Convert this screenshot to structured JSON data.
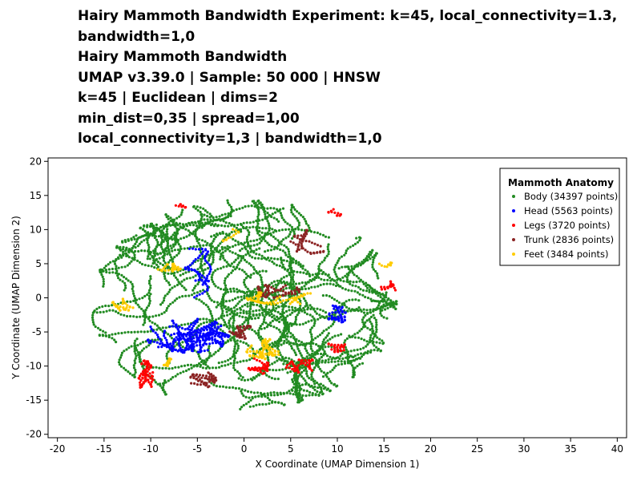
{
  "title_lines": [
    "Hairy Mammoth Bandwidth Experiment: k=45, local_connectivity=1.3,",
    "bandwidth=1,0",
    "Hairy Mammoth Bandwidth",
    "UMAP v3.39.0 | Sample: 50 000 | HNSW",
    "k=45 | Euclidean | dims=2",
    "min_dist=0,35 | spread=1,00",
    "local_connectivity=1,3 | bandwidth=1,0"
  ],
  "chart_data": {
    "type": "scatter",
    "xlabel": "X Coordinate (UMAP Dimension 1)",
    "ylabel": "Y Coordinate (UMAP Dimension 2)",
    "xlim": [
      -21,
      41
    ],
    "ylim": [
      -20.5,
      20.5
    ],
    "xticks": [
      -20,
      -15,
      -10,
      -5,
      0,
      5,
      10,
      15,
      20,
      25,
      30,
      35,
      40
    ],
    "yticks": [
      -20,
      -15,
      -10,
      -5,
      0,
      5,
      10,
      15,
      20
    ],
    "grid": false,
    "legend": {
      "title": "Mammoth Anatomy",
      "placement": "top-right",
      "entries": [
        "Body (34397 points)",
        "Head (5563 points)",
        "Legs (3720 points)",
        "Trunk (2836 points)",
        "Feet (3484 points)"
      ]
    },
    "series": [
      {
        "name": "Body",
        "color": "#228b22",
        "count": 34397
      },
      {
        "name": "Head",
        "color": "#0000ff",
        "count": 5563
      },
      {
        "name": "Legs",
        "color": "#ff0000",
        "count": 3720
      },
      {
        "name": "Trunk",
        "color": "#8b2323",
        "count": 2836
      },
      {
        "name": "Feet",
        "color": "#ffcc00",
        "count": 3484
      }
    ],
    "clusters": {
      "Body": [
        {
          "center": [
            0,
            -1
          ],
          "radius": [
            16,
            15
          ],
          "weight": 1.0
        }
      ],
      "Head": [
        {
          "center": [
            -6,
            -5.5
          ],
          "radius": [
            4.5,
            2.5
          ],
          "weight": 0.7
        },
        {
          "center": [
            -5,
            4
          ],
          "radius": [
            1.5,
            4
          ],
          "weight": 0.2
        },
        {
          "center": [
            10,
            -2.5
          ],
          "radius": [
            1,
            1.5
          ],
          "weight": 0.1
        }
      ],
      "Legs": [
        {
          "center": [
            -10.5,
            -11.5
          ],
          "radius": [
            0.8,
            2.5
          ],
          "weight": 0.25
        },
        {
          "center": [
            6.5,
            -10
          ],
          "radius": [
            2,
            1
          ],
          "weight": 0.25
        },
        {
          "center": [
            1.5,
            -10
          ],
          "radius": [
            1.2,
            1.2
          ],
          "weight": 0.15
        },
        {
          "center": [
            10,
            -7
          ],
          "radius": [
            1,
            1
          ],
          "weight": 0.1
        },
        {
          "center": [
            15.5,
            1.5
          ],
          "radius": [
            0.8,
            1
          ],
          "weight": 0.1
        },
        {
          "center": [
            10,
            12.5
          ],
          "radius": [
            1.2,
            0.5
          ],
          "weight": 0.1
        },
        {
          "center": [
            -6.5,
            13.5
          ],
          "radius": [
            0.8,
            0.3
          ],
          "weight": 0.05
        }
      ],
      "Trunk": [
        {
          "center": [
            7,
            8
          ],
          "radius": [
            2,
            2
          ],
          "weight": 0.35
        },
        {
          "center": [
            3,
            1
          ],
          "radius": [
            3,
            1
          ],
          "weight": 0.3
        },
        {
          "center": [
            -4.5,
            -12
          ],
          "radius": [
            1.5,
            1.2
          ],
          "weight": 0.2
        },
        {
          "center": [
            0,
            -5
          ],
          "radius": [
            1.5,
            1
          ],
          "weight": 0.15
        }
      ],
      "Feet": [
        {
          "center": [
            4,
            0
          ],
          "radius": [
            4,
            1
          ],
          "weight": 0.4
        },
        {
          "center": [
            2,
            -7.5
          ],
          "radius": [
            2,
            1.5
          ],
          "weight": 0.25
        },
        {
          "center": [
            -8,
            4.5
          ],
          "radius": [
            1.5,
            0.7
          ],
          "weight": 0.1
        },
        {
          "center": [
            -13,
            -1
          ],
          "radius": [
            1.2,
            1
          ],
          "weight": 0.1
        },
        {
          "center": [
            -1.5,
            9
          ],
          "radius": [
            1,
            1.5
          ],
          "weight": 0.05
        },
        {
          "center": [
            14.5,
            5
          ],
          "radius": [
            2,
            0.5
          ],
          "weight": 0.05
        },
        {
          "center": [
            -8,
            -9.5
          ],
          "radius": [
            0.7,
            0.7
          ],
          "weight": 0.05
        }
      ]
    }
  }
}
